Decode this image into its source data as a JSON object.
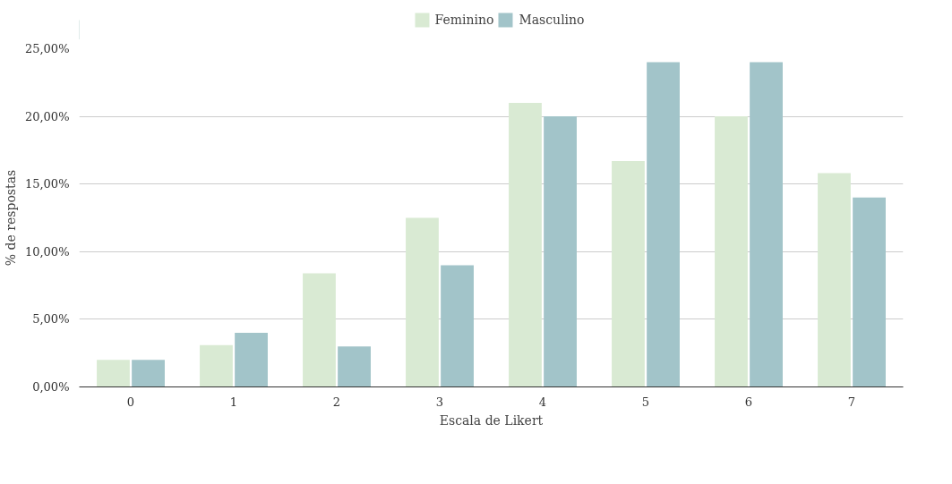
{
  "chart_data": {
    "type": "bar",
    "xlabel": "Escala de Likert",
    "ylabel": "% de respostas",
    "categories": [
      "0",
      "1",
      "2",
      "3",
      "4",
      "5",
      "6",
      "7"
    ],
    "series": [
      {
        "name": "Feminino",
        "color": "#d9ead3",
        "values": [
          2.0,
          3.1,
          8.4,
          12.5,
          21.0,
          16.7,
          20.0,
          15.8
        ]
      },
      {
        "name": "Masculino",
        "color": "#a2c4c9",
        "values": [
          2.0,
          4.0,
          3.0,
          9.0,
          20.0,
          24.0,
          24.0,
          14.0
        ]
      }
    ],
    "ylim": [
      0,
      25
    ],
    "yticks": [
      {
        "value": 0,
        "label": "0,00%"
      },
      {
        "value": 5,
        "label": "5,00%"
      },
      {
        "value": 10,
        "label": "10,00%"
      },
      {
        "value": 15,
        "label": "15,00%"
      },
      {
        "value": 20,
        "label": "20,00%"
      },
      {
        "value": 25,
        "label": "25,00%"
      }
    ],
    "grid": "y",
    "legend": "top"
  }
}
